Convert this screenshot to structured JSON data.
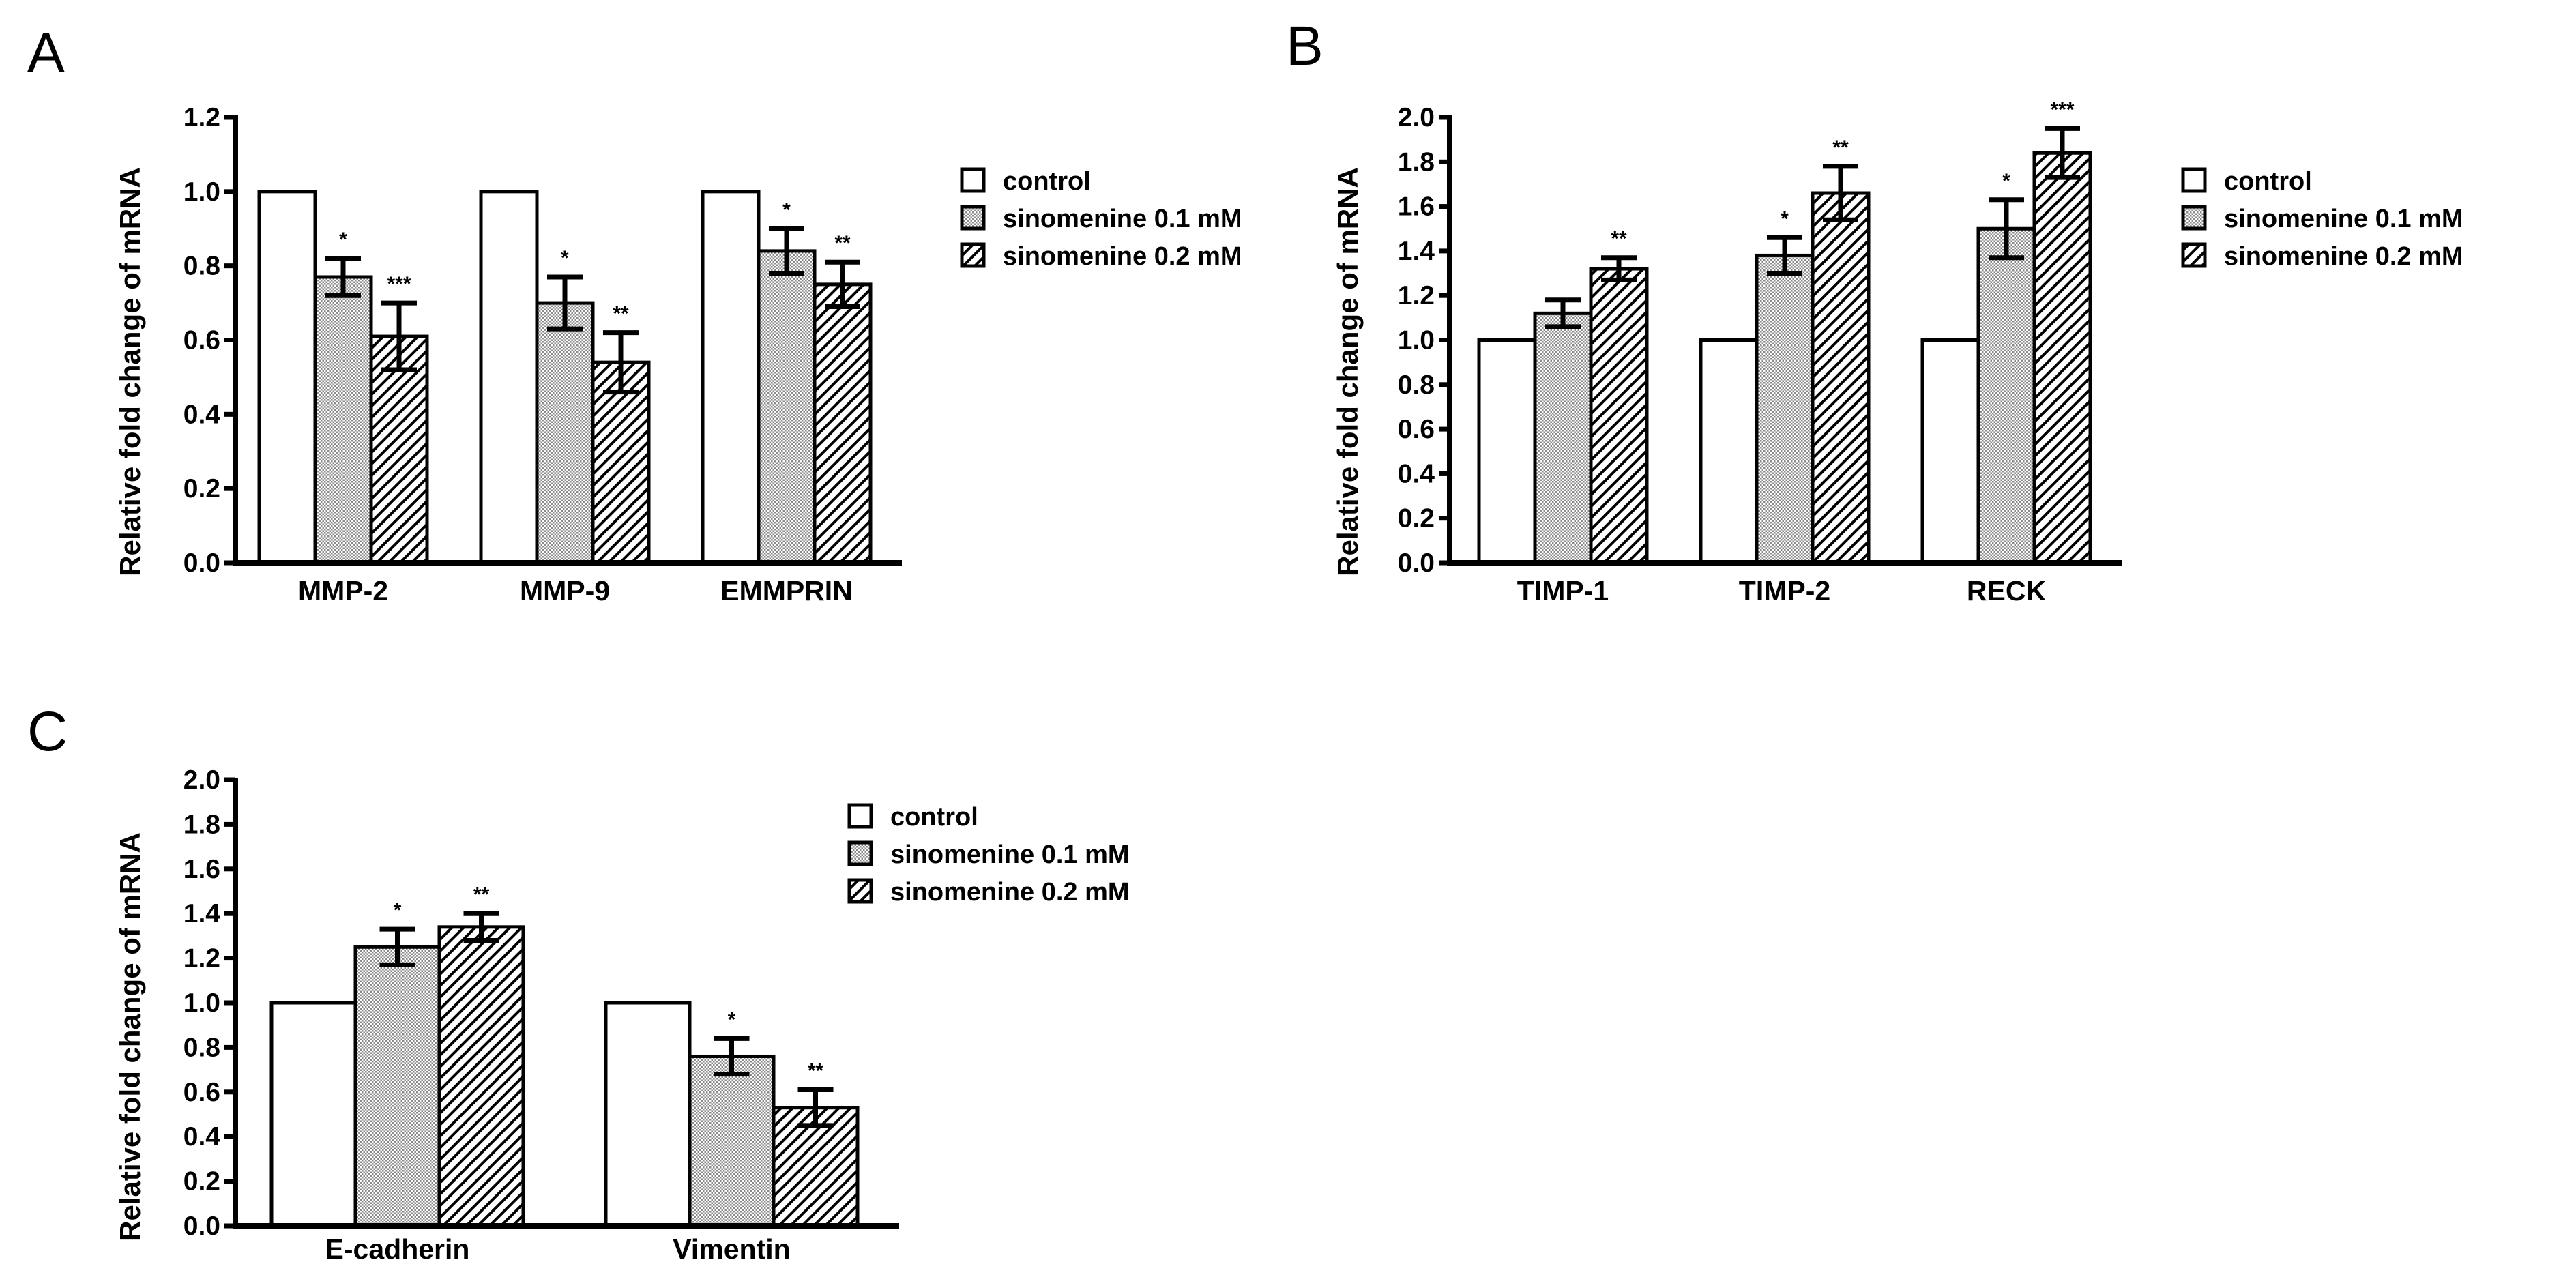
{
  "chart_data": [
    {
      "panel": "A",
      "type": "bar",
      "ylabel": "Relative fold change of mRNA",
      "ylim": [
        0,
        1.2
      ],
      "ytick_labels": [
        "0.0",
        "0.2",
        "0.4",
        "0.6",
        "0.8",
        "1.0",
        "1.2"
      ],
      "categories": [
        "MMP-2",
        "MMP-9",
        "EMMPRIN"
      ],
      "series": [
        {
          "name": "control",
          "values": [
            1.0,
            1.0,
            1.0
          ],
          "errors": [
            0,
            0,
            0
          ],
          "significance": [
            "",
            "",
            ""
          ]
        },
        {
          "name": "sinomenine 0.1 mM",
          "values": [
            0.77,
            0.7,
            0.84
          ],
          "errors": [
            0.05,
            0.07,
            0.06
          ],
          "significance": [
            "*",
            "*",
            "*"
          ]
        },
        {
          "name": "sinomenine 0.2 mM",
          "values": [
            0.61,
            0.54,
            0.75
          ],
          "errors": [
            0.09,
            0.08,
            0.06
          ],
          "significance": [
            "***",
            "**",
            "**"
          ]
        }
      ]
    },
    {
      "panel": "B",
      "type": "bar",
      "ylabel": "Relative fold change of mRNA",
      "ylim": [
        0,
        2.0
      ],
      "ytick_labels": [
        "0.0",
        "0.2",
        "0.4",
        "0.6",
        "0.8",
        "1.0",
        "1.2",
        "1.4",
        "1.6",
        "1.8",
        "2.0"
      ],
      "categories": [
        "TIMP-1",
        "TIMP-2",
        "RECK"
      ],
      "series": [
        {
          "name": "control",
          "values": [
            1.0,
            1.0,
            1.0
          ],
          "errors": [
            0,
            0,
            0
          ],
          "significance": [
            "",
            "",
            ""
          ]
        },
        {
          "name": "sinomenine 0.1 mM",
          "values": [
            1.12,
            1.38,
            1.5
          ],
          "errors": [
            0.06,
            0.08,
            0.13
          ],
          "significance": [
            "",
            "*",
            "*"
          ]
        },
        {
          "name": "sinomenine 0.2 mM",
          "values": [
            1.32,
            1.66,
            1.84
          ],
          "errors": [
            0.05,
            0.12,
            0.11
          ],
          "significance": [
            "**",
            "**",
            "***"
          ]
        }
      ]
    },
    {
      "panel": "C",
      "type": "bar",
      "ylabel": "Relative fold change of mRNA",
      "ylim": [
        0,
        2.0
      ],
      "ytick_labels": [
        "0.0",
        "0.2",
        "0.4",
        "0.6",
        "0.8",
        "1.0",
        "1.2",
        "1.4",
        "1.6",
        "1.8",
        "2.0"
      ],
      "categories": [
        "E-cadherin",
        "Vimentin"
      ],
      "series": [
        {
          "name": "control",
          "values": [
            1.0,
            1.0
          ],
          "errors": [
            0,
            0
          ],
          "significance": [
            "",
            ""
          ]
        },
        {
          "name": "sinomenine 0.1 mM",
          "values": [
            1.25,
            0.76
          ],
          "errors": [
            0.08,
            0.08
          ],
          "significance": [
            "*",
            "*"
          ]
        },
        {
          "name": "sinomenine 0.2 mM",
          "values": [
            1.34,
            0.53
          ],
          "errors": [
            0.06,
            0.08
          ],
          "significance": [
            "**",
            "**"
          ]
        }
      ]
    }
  ]
}
